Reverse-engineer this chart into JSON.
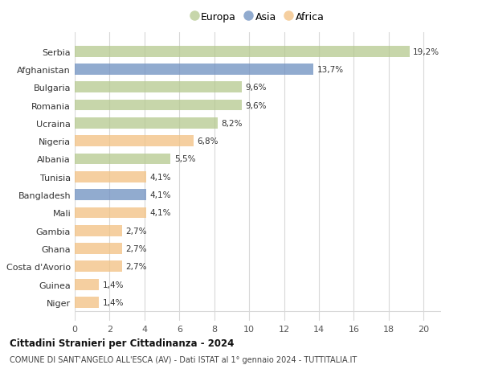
{
  "categories": [
    "Serbia",
    "Afghanistan",
    "Bulgaria",
    "Romania",
    "Ucraina",
    "Nigeria",
    "Albania",
    "Tunisia",
    "Bangladesh",
    "Mali",
    "Gambia",
    "Ghana",
    "Costa d'Avorio",
    "Guinea",
    "Niger"
  ],
  "values": [
    19.2,
    13.7,
    9.6,
    9.6,
    8.2,
    6.8,
    5.5,
    4.1,
    4.1,
    4.1,
    2.7,
    2.7,
    2.7,
    1.4,
    1.4
  ],
  "labels": [
    "19,2%",
    "13,7%",
    "9,6%",
    "9,6%",
    "8,2%",
    "6,8%",
    "5,5%",
    "4,1%",
    "4,1%",
    "4,1%",
    "2,7%",
    "2,7%",
    "2,7%",
    "1,4%",
    "1,4%"
  ],
  "continents": [
    "Europa",
    "Asia",
    "Europa",
    "Europa",
    "Europa",
    "Africa",
    "Europa",
    "Africa",
    "Asia",
    "Africa",
    "Africa",
    "Africa",
    "Africa",
    "Africa",
    "Africa"
  ],
  "colors": {
    "Europa": "#b5c98e",
    "Asia": "#6d8fc0",
    "Africa": "#f2c080"
  },
  "xlim": [
    0,
    21
  ],
  "xticks": [
    0,
    2,
    4,
    6,
    8,
    10,
    12,
    14,
    16,
    18,
    20
  ],
  "title": "Cittadini Stranieri per Cittadinanza - 2024",
  "subtitle": "COMUNE DI SANT'ANGELO ALL'ESCA (AV) - Dati ISTAT al 1° gennaio 2024 - TUTTITALIA.IT",
  "background_color": "#ffffff",
  "grid_color": "#d8d8d8",
  "bar_alpha": 0.75,
  "legend_items": [
    "Europa",
    "Asia",
    "Africa"
  ]
}
